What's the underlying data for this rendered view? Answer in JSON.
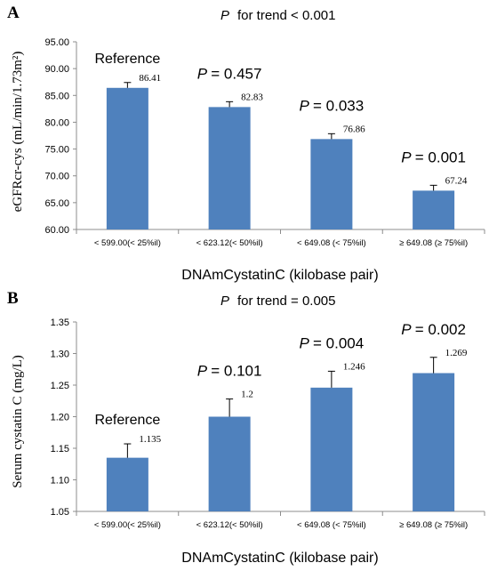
{
  "chart_data": [
    {
      "panel": "A",
      "type": "bar",
      "trend_label": "for trend < 0.001",
      "categories": [
        "< 599.00(< 25%il)",
        "< 623.12(< 50%il)",
        "< 649.08 (< 75%il)",
        "≥ 649.08 (≥ 75%il)"
      ],
      "values": [
        86.41,
        82.83,
        76.86,
        67.24
      ],
      "value_labels": [
        "86.41",
        "82.83",
        "76.86",
        "67.24"
      ],
      "errors": [
        1.0,
        1.0,
        1.0,
        1.0
      ],
      "annotations": [
        "Reference",
        "= 0.457",
        "= 0.033",
        "= 0.001"
      ],
      "xlabel": "DNAmCystatinC (kilobase pair)",
      "ylabel": "eGFRcr-cys (mL/min/1.73m²)",
      "ylim": [
        60,
        95
      ],
      "yticks": [
        "60.00",
        "65.00",
        "70.00",
        "75.00",
        "80.00",
        "85.00",
        "90.00",
        "95.00"
      ],
      "bar_color": "#4f81bd"
    },
    {
      "panel": "B",
      "type": "bar",
      "trend_label": "for trend = 0.005",
      "categories": [
        "< 599.00(< 25%il)",
        "< 623.12(< 50%il)",
        "< 649.08 (< 75%il)",
        "≥ 649.08 (≥ 75%il)"
      ],
      "values": [
        1.135,
        1.2,
        1.246,
        1.269
      ],
      "value_labels": [
        "1.135",
        "1.2",
        "1.246",
        "1.269"
      ],
      "errors": [
        0.022,
        0.028,
        0.026,
        0.025
      ],
      "annotations": [
        "Reference",
        "= 0.101",
        "= 0.004",
        "= 0.002"
      ],
      "xlabel": "DNAmCystatinC (kilobase pair)",
      "ylabel": "Serum cystatin C (mg/L)",
      "ylim": [
        1.05,
        1.35
      ],
      "yticks": [
        "1.05",
        "1.10",
        "1.15",
        "1.20",
        "1.25",
        "1.30",
        "1.35"
      ],
      "bar_color": "#4f81bd"
    }
  ]
}
